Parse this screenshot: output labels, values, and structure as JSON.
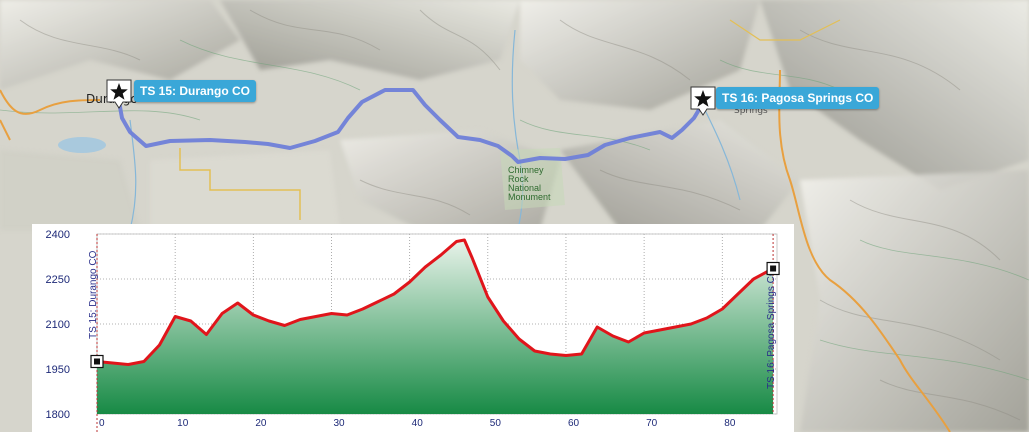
{
  "map": {
    "markers": [
      {
        "label": "TS 15: Durango CO",
        "icon": "star-pin-icon"
      },
      {
        "label": "TS 16: Pagosa Springs CO",
        "icon": "star-pin-icon"
      }
    ],
    "place_labels": [
      "Durango",
      "Springs"
    ],
    "monument_label": [
      "Chimney",
      "Rock",
      "National",
      "Monument"
    ],
    "route_color": "#6f7fd8"
  },
  "elevation_profile": {
    "start_label": "TS 15: Durango CO",
    "end_label": "TS 16: Pagosa Springs CO",
    "fill_top_color": "#e8f3ea",
    "fill_bottom_color": "#178a45",
    "line_color": "#e0151b"
  },
  "chart_data": {
    "type": "area",
    "title": "",
    "xlabel": "",
    "ylabel": "",
    "xlim": [
      0,
      87
    ],
    "ylim": [
      1800,
      2400
    ],
    "x_ticks": [
      0,
      10,
      20,
      30,
      40,
      50,
      60,
      70,
      80
    ],
    "y_ticks": [
      1800,
      1950,
      2100,
      2250,
      2400
    ],
    "grid": true,
    "series": [
      {
        "x": [
          0,
          2,
          4,
          6,
          8,
          10,
          12,
          14,
          16,
          18,
          20,
          22,
          24,
          26,
          28,
          30,
          32,
          34,
          36,
          38,
          40,
          42,
          44,
          46,
          47,
          48,
          50,
          52,
          54,
          56,
          58,
          60,
          62,
          64,
          66,
          68,
          70,
          72,
          74,
          76,
          78,
          80,
          82,
          84,
          86.5
        ],
        "y": [
          1975,
          1970,
          1965,
          1975,
          2030,
          2125,
          2110,
          2065,
          2135,
          2170,
          2130,
          2110,
          2095,
          2115,
          2125,
          2135,
          2130,
          2150,
          2175,
          2200,
          2240,
          2290,
          2330,
          2375,
          2380,
          2320,
          2190,
          2110,
          2050,
          2010,
          2000,
          1995,
          2000,
          2090,
          2060,
          2040,
          2070,
          2080,
          2090,
          2100,
          2120,
          2150,
          2200,
          2250,
          2285
        ]
      }
    ]
  }
}
